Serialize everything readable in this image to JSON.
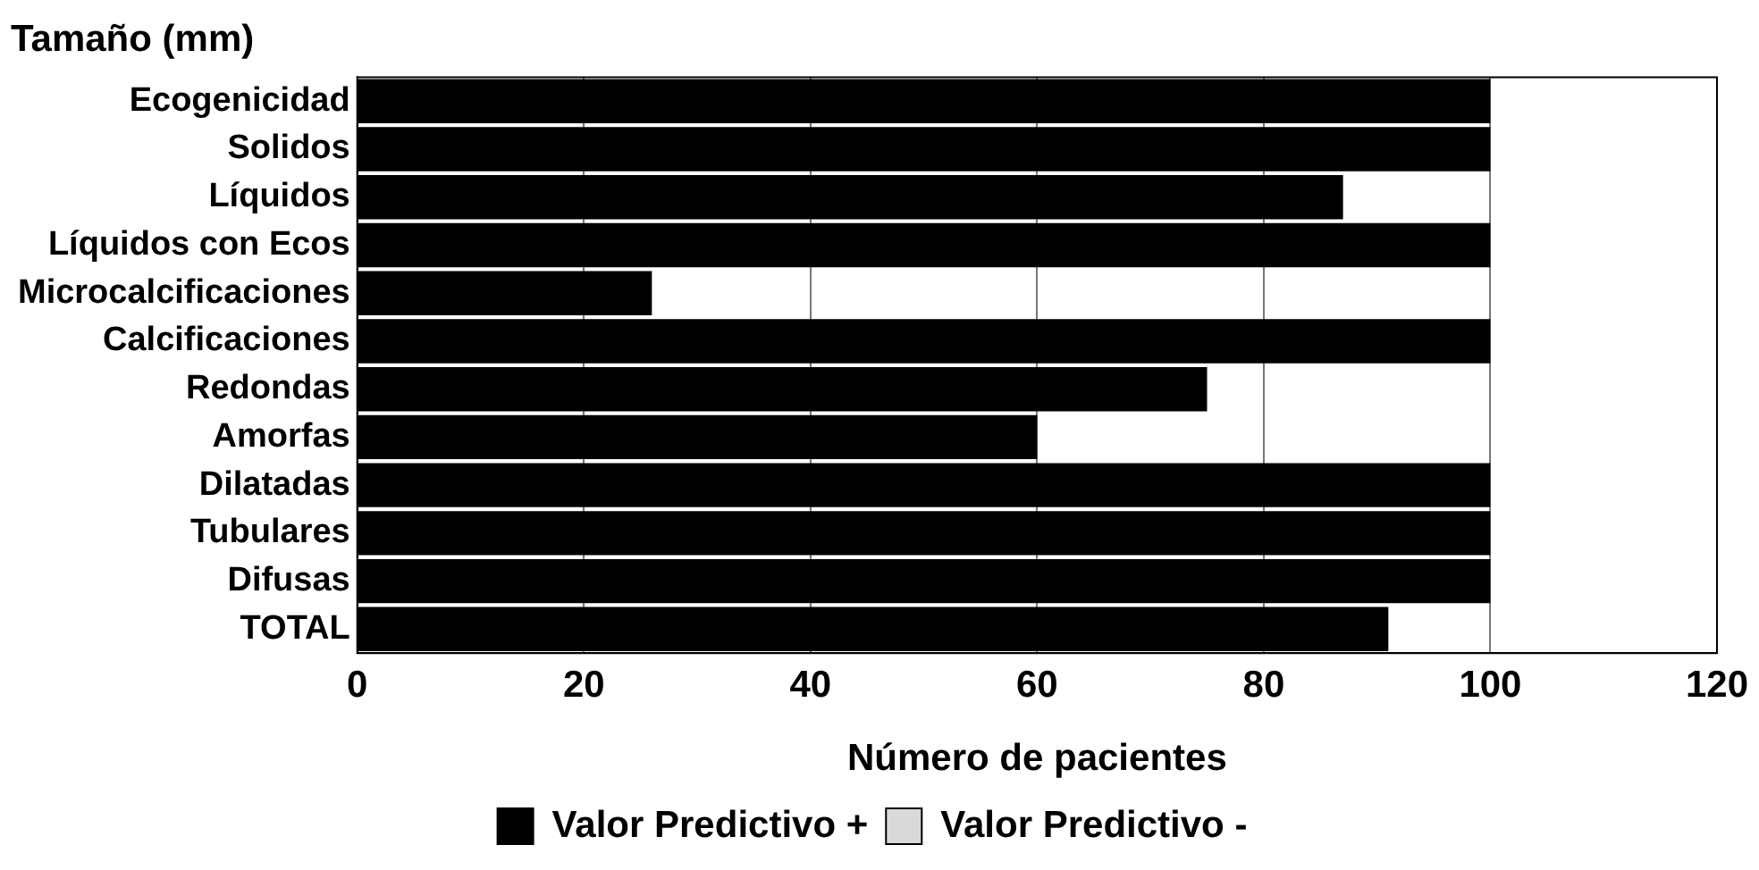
{
  "chart_data": {
    "type": "bar",
    "orientation": "horizontal",
    "title": "Tamaño (mm)",
    "xlabel": "Número de pacientes",
    "categories": [
      "Ecogenicidad",
      "Solidos",
      "Líquidos",
      "Líquidos con Ecos",
      "Microcalcificaciones",
      "Calcificaciones",
      "Redondas",
      "Amorfas",
      "Dilatadas",
      "Tubulares",
      "Difusas",
      "TOTAL"
    ],
    "series": [
      {
        "name": "Valor Predictivo +",
        "color": "#000000",
        "values": [
          100,
          100,
          87,
          100,
          26,
          100,
          75,
          60,
          100,
          100,
          100,
          91
        ]
      },
      {
        "name": "Valor Predictivo -",
        "color": "#d9d9d9",
        "values": [
          null,
          null,
          null,
          null,
          null,
          null,
          null,
          null,
          null,
          null,
          null,
          null
        ]
      }
    ],
    "xlim": [
      0,
      120
    ],
    "xticks": [
      0,
      20,
      40,
      60,
      80,
      100,
      120
    ],
    "grid": "x",
    "legend": "bottom"
  }
}
